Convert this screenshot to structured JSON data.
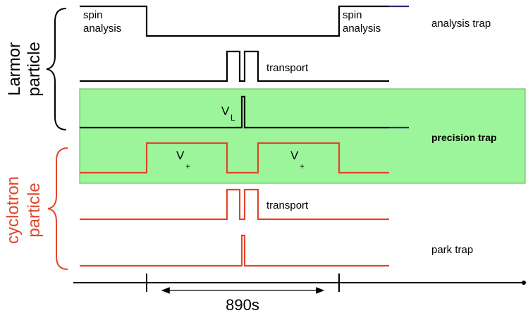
{
  "colors": {
    "precision_band": "#9cf59a",
    "precision_band_border": "#58b458",
    "larmor": "#000000",
    "cyclotron": "#e0452b",
    "tail": "#2a2a7a"
  },
  "groups": {
    "larmor": {
      "line1": "Larmor",
      "line2": "particle"
    },
    "cyclotron": {
      "line1": "cyclotron",
      "line2": "particle"
    }
  },
  "labels": {
    "spin_left_1": "spin",
    "spin_left_2": "analysis",
    "spin_right_1": "spin",
    "spin_right_2": "analysis",
    "transport_top": "transport",
    "transport_bottom": "transport",
    "vl_main": "V",
    "vl_sub": "L",
    "vplus_left_main": "V",
    "vplus_left_sub": "+",
    "vplus_right_main": "V",
    "vplus_right_sub": "+"
  },
  "traps": {
    "analysis": "analysis trap",
    "precision": "precision trap",
    "park": "park trap"
  },
  "timeline": {
    "duration": "890s"
  }
}
